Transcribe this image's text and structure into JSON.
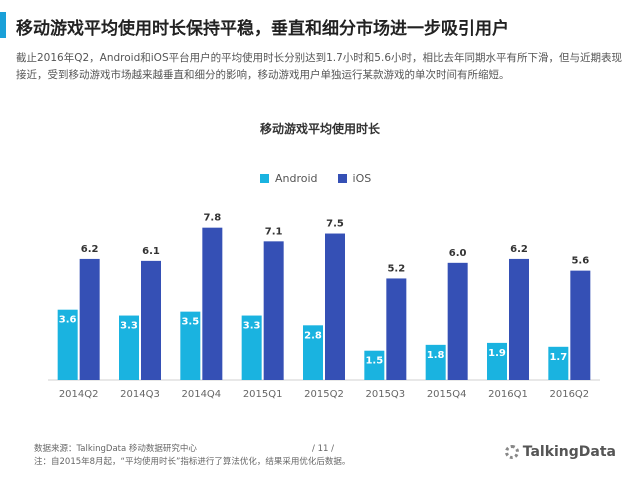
{
  "header": {
    "title": "移动游戏平均使用时长保持平稳，垂直和细分市场进一步吸引用户",
    "description": "截止2016年Q2，Android和iOS平台用户的平均使用时长分别达到1.7小时和5.6小时，相比去年同期水平有所下滑，但与近期表现接近，受到移动游戏市场越来越垂直和细分的影响，移动游戏用户单独运行某款游戏的单次时间有所缩短。"
  },
  "colors": {
    "android": "#1ab3e0",
    "ios": "#3550b5",
    "accent": "#1aa0d8"
  },
  "chart_data": {
    "type": "bar",
    "title": "移动游戏平均使用时长",
    "categories": [
      "2014Q2",
      "2014Q3",
      "2014Q4",
      "2015Q1",
      "2015Q2",
      "2015Q3",
      "2015Q4",
      "2016Q1",
      "2016Q2"
    ],
    "series": [
      {
        "name": "Android",
        "values": [
          3.6,
          3.3,
          3.5,
          3.3,
          2.8,
          1.5,
          1.8,
          1.9,
          1.7
        ]
      },
      {
        "name": "iOS",
        "values": [
          6.2,
          6.1,
          7.8,
          7.1,
          7.5,
          5.2,
          6.0,
          6.2,
          5.6
        ]
      }
    ],
    "ylim": [
      0,
      8.5
    ],
    "legend_position": "top-center",
    "grid": false
  },
  "footer": {
    "source": "数据来源：TalkingData 移动数据研究中心",
    "note": "注：自2015年8月起，“平均使用时长”指标进行了算法优化，结果采用优化后数据。",
    "page": "/ 11 /",
    "brand": "TalkingData"
  }
}
